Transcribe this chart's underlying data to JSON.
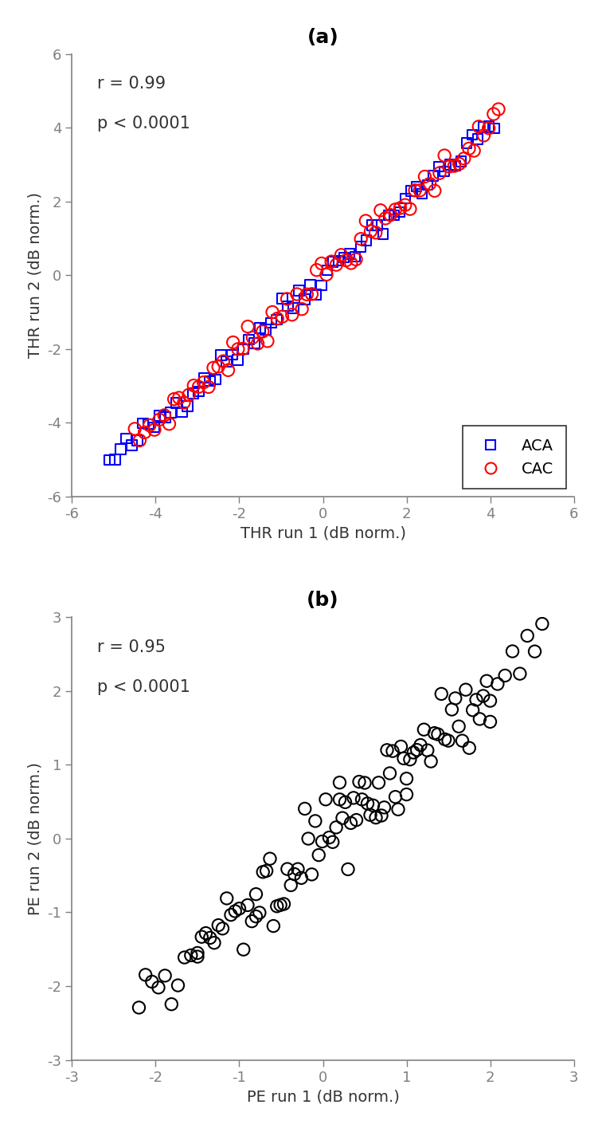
{
  "panel_a": {
    "title": "(a)",
    "xlabel": "THR run 1 (dB norm.)",
    "ylabel": "THR run 2 (dB norm.)",
    "xlim": [
      -6,
      6
    ],
    "ylim": [
      -6,
      6
    ],
    "xticks": [
      -6,
      -4,
      -2,
      0,
      2,
      4,
      6
    ],
    "yticks": [
      -6,
      -4,
      -2,
      0,
      2,
      4,
      6
    ],
    "annotation_line1": "r = 0.99",
    "annotation_line2": "p < 0.0001",
    "aca_color": "#0000ff",
    "cac_color": "#ff0000",
    "legend_labels": [
      "ACA",
      "CAC"
    ]
  },
  "panel_b": {
    "title": "(b)",
    "xlabel": "PE run 1 (dB norm.)",
    "ylabel": "PE run 2 (dB norm.)",
    "xlim": [
      -3,
      3
    ],
    "ylim": [
      -3,
      3
    ],
    "xticks": [
      -3,
      -2,
      -1,
      0,
      1,
      2,
      3
    ],
    "yticks": [
      -3,
      -2,
      -1,
      0,
      1,
      2,
      3
    ],
    "annotation_line1": "r = 0.95",
    "annotation_line2": "p < 0.0001",
    "color": "#000000"
  },
  "title_fontsize": 18,
  "label_fontsize": 14,
  "tick_fontsize": 13,
  "annot_fontsize": 15,
  "marker_size_sq": 9,
  "marker_size_circ": 11,
  "linewidth": 1.5,
  "bg_color": "#ffffff",
  "tick_color": "#808080",
  "spine_color": "#808080"
}
